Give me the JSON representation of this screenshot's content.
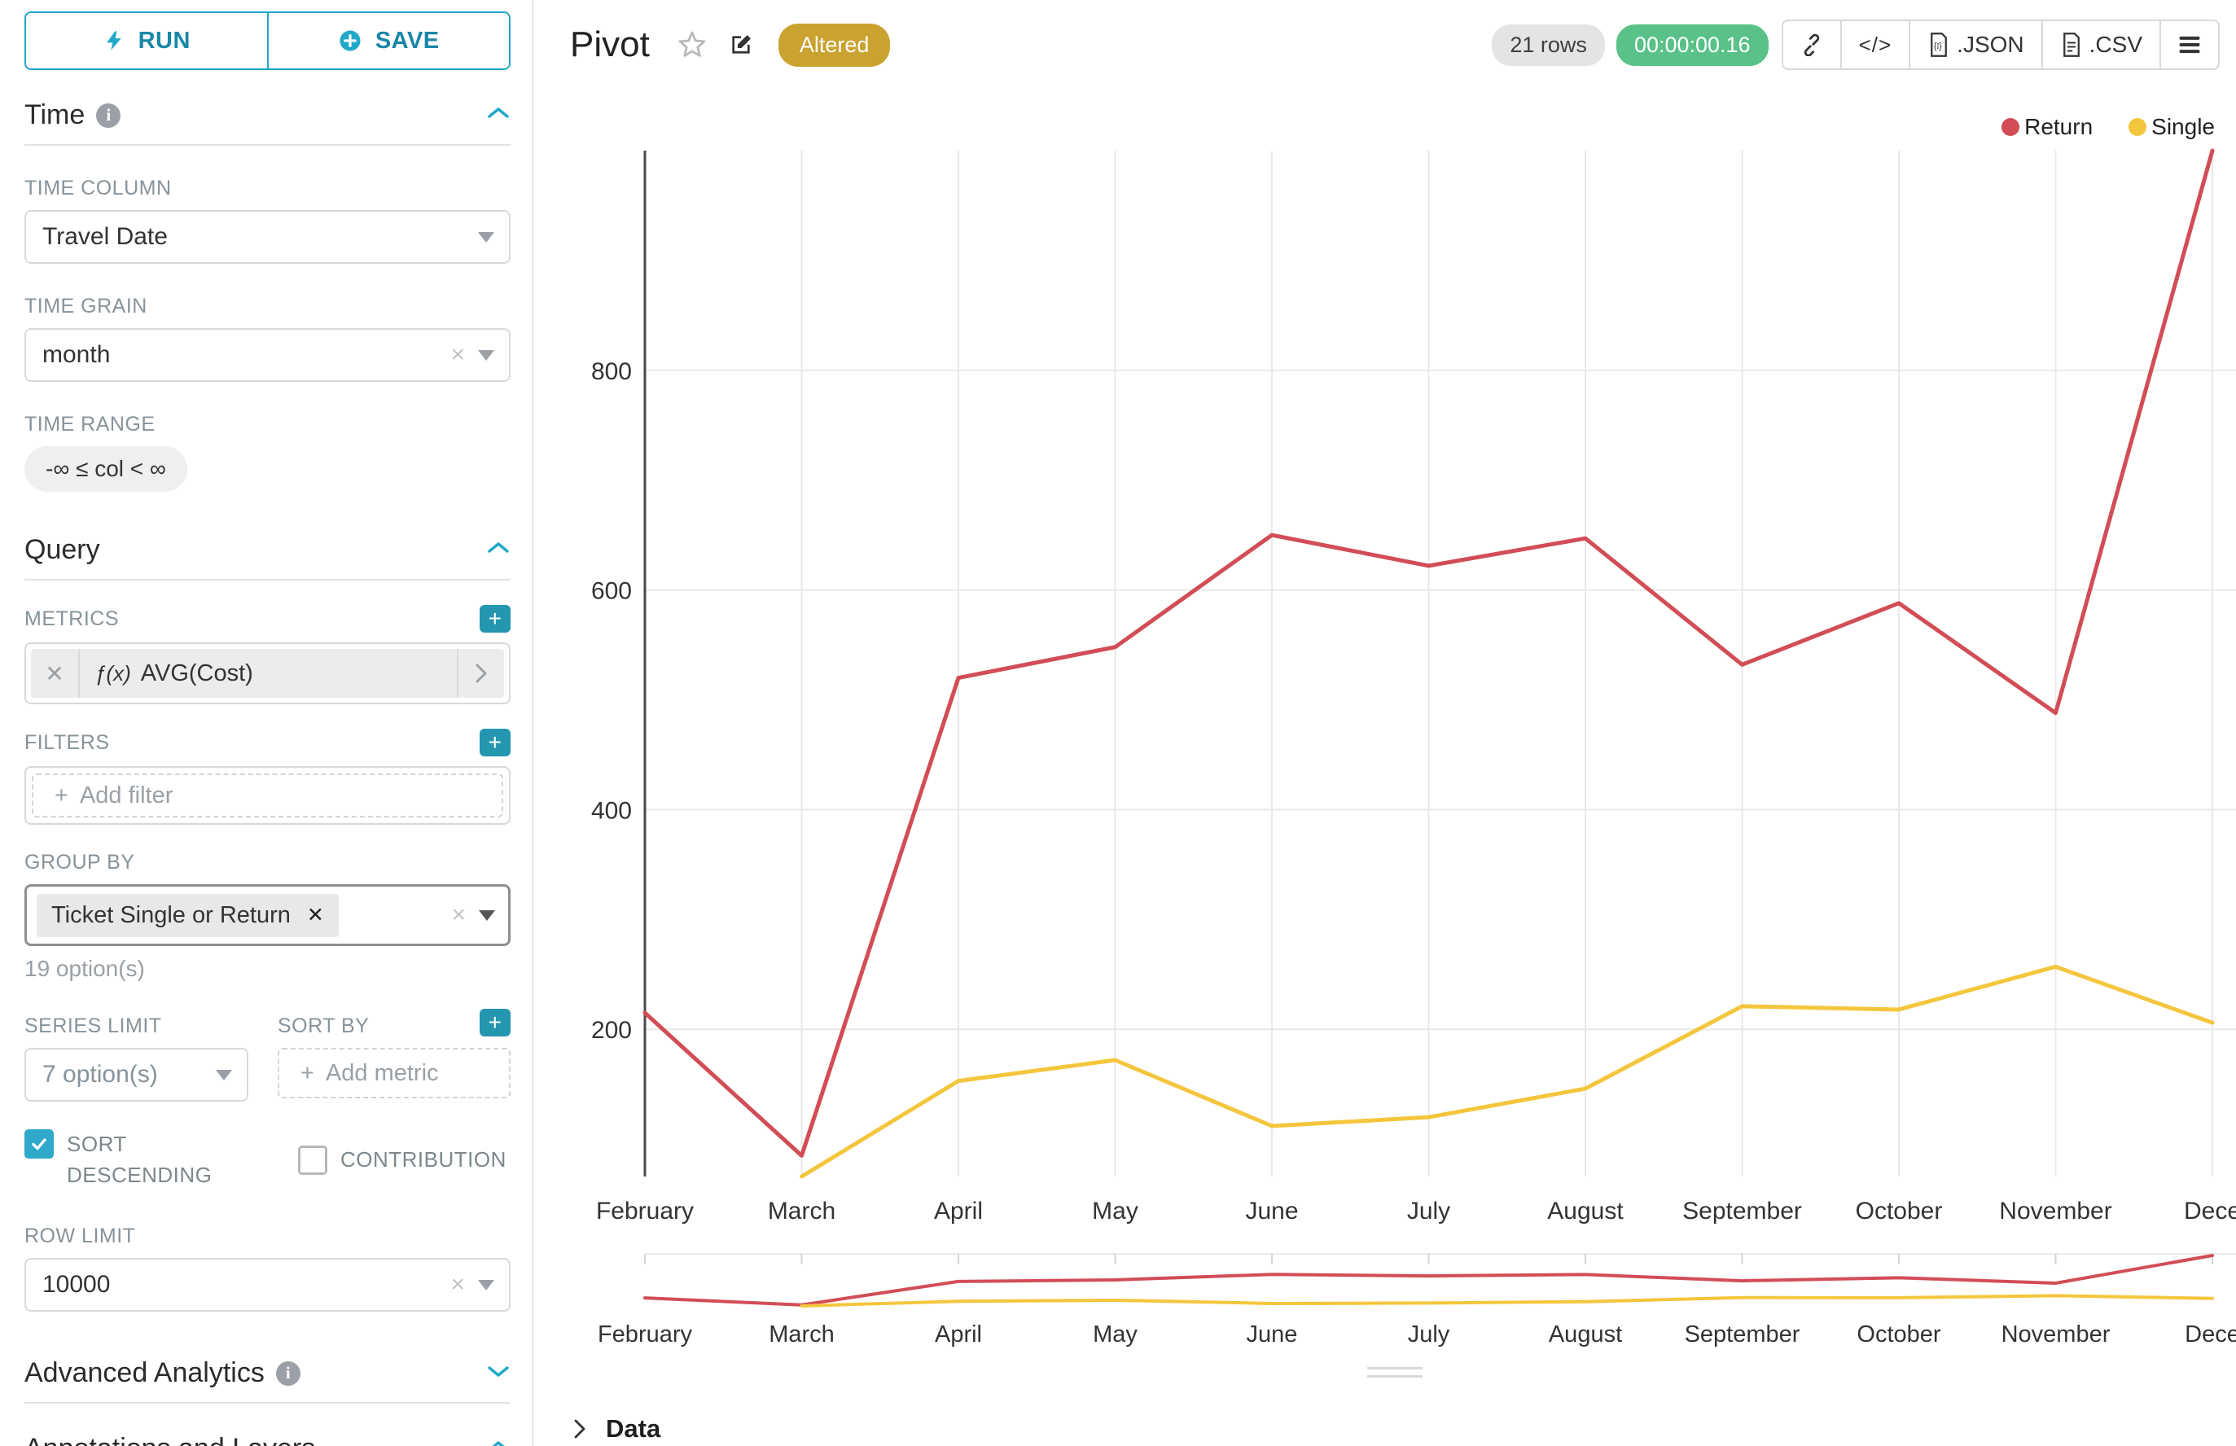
{
  "app": {
    "run_label": "RUN",
    "save_label": "SAVE"
  },
  "panels": {
    "time": {
      "title": "Time",
      "time_column_label": "TIME COLUMN",
      "time_column_value": "Travel Date",
      "time_grain_label": "TIME GRAIN",
      "time_grain_value": "month",
      "time_range_label": "TIME RANGE",
      "time_range_value": "-∞ ≤ col < ∞"
    },
    "query": {
      "title": "Query",
      "metrics_label": "METRICS",
      "metric_fx": "ƒ(x)",
      "metric_value": "AVG(Cost)",
      "filters_label": "FILTERS",
      "add_filter_placeholder": "Add filter",
      "group_by_label": "GROUP BY",
      "group_by_value": "Ticket Single or Return",
      "group_by_hint": "19 option(s)",
      "series_limit_label": "SERIES LIMIT",
      "series_limit_value": "7 option(s)",
      "sort_by_label": "SORT BY",
      "sort_by_placeholder": "Add metric",
      "sort_descending_label": "SORT DESCENDING",
      "contribution_label": "CONTRIBUTION",
      "row_limit_label": "ROW LIMIT",
      "row_limit_value": "10000"
    },
    "advanced_analytics": {
      "title": "Advanced Analytics"
    },
    "annotations": {
      "title": "Annotations and Layers"
    }
  },
  "chart_header": {
    "title": "Pivot",
    "altered_badge": "Altered",
    "row_count": "21 rows",
    "timer": "00:00:00.16",
    "json_label": ".JSON",
    "csv_label": ".CSV"
  },
  "data_panel": {
    "title": "Data"
  },
  "chart_data": {
    "type": "line",
    "title": "Pivot",
    "categories": [
      "February",
      "March",
      "April",
      "May",
      "June",
      "July",
      "August",
      "September",
      "October",
      "November",
      "December"
    ],
    "axis_labels": [
      "February",
      "March",
      "April",
      "May",
      "June",
      "July",
      "August",
      "September",
      "October",
      "November",
      "Dece"
    ],
    "series": [
      {
        "name": "Return",
        "color": "#D24D56",
        "values": [
          215,
          85,
          520,
          548,
          650,
          622,
          647,
          532,
          588,
          488,
          1000
        ]
      },
      {
        "name": "Single",
        "color": "#F4C63D",
        "values": [
          null,
          66,
          153,
          172,
          112,
          120,
          146,
          221,
          218,
          257,
          206
        ]
      }
    ],
    "xlabel": "",
    "ylabel": "",
    "ylim": [
      66,
      1000
    ],
    "yticks": [
      200,
      400,
      600,
      800
    ],
    "grid": true,
    "legend_position": "top-right",
    "range_selector": true
  }
}
